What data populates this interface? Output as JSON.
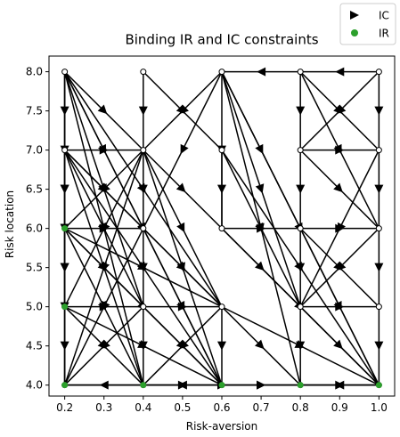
{
  "chart_data": {
    "type": "scatter",
    "title": "Binding IR and IC constraints",
    "xlabel": "Risk-aversion",
    "ylabel": "Risk location",
    "xlim": [
      0.16,
      1.04
    ],
    "ylim": [
      3.86,
      8.2
    ],
    "xticks": [
      "0.2",
      "0.3",
      "0.4",
      "0.5",
      "0.6",
      "0.7",
      "0.8",
      "0.9",
      "1.0"
    ],
    "yticks": [
      "4.0",
      "4.5",
      "5.0",
      "5.5",
      "6.0",
      "6.5",
      "7.0",
      "7.5",
      "8.0"
    ],
    "grid": false,
    "legend_position": "top-right",
    "legend": [
      {
        "label": "IC",
        "marker": "right-triangle",
        "color": "#000000"
      },
      {
        "label": "IR",
        "marker": "circle",
        "color": "#2ca02c"
      }
    ],
    "nodes": [
      [
        0.2,
        8.0
      ],
      [
        0.4,
        8.0
      ],
      [
        0.6,
        8.0
      ],
      [
        0.8,
        8.0
      ],
      [
        1.0,
        8.0
      ],
      [
        0.2,
        7.0
      ],
      [
        0.4,
        7.0
      ],
      [
        0.6,
        7.0
      ],
      [
        0.8,
        7.0
      ],
      [
        1.0,
        7.0
      ],
      [
        0.2,
        6.0
      ],
      [
        0.4,
        6.0
      ],
      [
        0.6,
        6.0
      ],
      [
        0.8,
        6.0
      ],
      [
        1.0,
        6.0
      ],
      [
        0.2,
        5.0
      ],
      [
        0.4,
        5.0
      ],
      [
        0.6,
        5.0
      ],
      [
        0.8,
        5.0
      ],
      [
        1.0,
        5.0
      ],
      [
        0.2,
        4.0
      ],
      [
        0.4,
        4.0
      ],
      [
        0.6,
        4.0
      ],
      [
        0.8,
        4.0
      ],
      [
        1.0,
        4.0
      ]
    ],
    "ir_points": [
      [
        0.2,
        6.0
      ],
      [
        0.2,
        5.0
      ],
      [
        0.2,
        4.0
      ],
      [
        0.4,
        4.0
      ],
      [
        0.6,
        4.0
      ],
      [
        0.8,
        4.0
      ],
      [
        1.0,
        4.0
      ]
    ],
    "ic_edges": [
      [
        [
          0.2,
          8.0
        ],
        [
          0.2,
          7.0
        ]
      ],
      [
        [
          0.2,
          8.0
        ],
        [
          0.4,
          7.0
        ]
      ],
      [
        [
          0.2,
          8.0
        ],
        [
          0.2,
          6.0
        ]
      ],
      [
        [
          0.2,
          8.0
        ],
        [
          0.4,
          6.0
        ]
      ],
      [
        [
          0.2,
          8.0
        ],
        [
          0.2,
          5.0
        ]
      ],
      [
        [
          0.2,
          8.0
        ],
        [
          0.4,
          5.0
        ]
      ],
      [
        [
          0.2,
          8.0
        ],
        [
          0.6,
          5.0
        ]
      ],
      [
        [
          0.2,
          8.0
        ],
        [
          0.2,
          4.0
        ]
      ],
      [
        [
          0.2,
          8.0
        ],
        [
          0.4,
          4.0
        ]
      ],
      [
        [
          0.2,
          8.0
        ],
        [
          0.6,
          4.0
        ]
      ],
      [
        [
          0.4,
          8.0
        ],
        [
          0.4,
          7.0
        ]
      ],
      [
        [
          0.4,
          8.0
        ],
        [
          0.6,
          7.0
        ]
      ],
      [
        [
          0.6,
          8.0
        ],
        [
          0.4,
          7.0
        ]
      ],
      [
        [
          0.6,
          8.0
        ],
        [
          0.6,
          6.0
        ]
      ],
      [
        [
          0.6,
          8.0
        ],
        [
          0.8,
          6.0
        ]
      ],
      [
        [
          0.6,
          8.0
        ],
        [
          0.8,
          5.0
        ]
      ],
      [
        [
          0.6,
          8.0
        ],
        [
          0.8,
          4.0
        ]
      ],
      [
        [
          0.6,
          8.0
        ],
        [
          1.0,
          4.0
        ]
      ],
      [
        [
          0.6,
          8.0
        ],
        [
          0.4,
          6.0
        ]
      ],
      [
        [
          1.0,
          8.0
        ],
        [
          0.8,
          8.0
        ]
      ],
      [
        [
          0.8,
          8.0
        ],
        [
          0.6,
          8.0
        ]
      ],
      [
        [
          0.8,
          8.0
        ],
        [
          1.0,
          7.0
        ]
      ],
      [
        [
          0.8,
          8.0
        ],
        [
          0.8,
          7.0
        ]
      ],
      [
        [
          0.8,
          8.0
        ],
        [
          1.0,
          6.0
        ]
      ],
      [
        [
          1.0,
          8.0
        ],
        [
          1.0,
          7.0
        ]
      ],
      [
        [
          1.0,
          8.0
        ],
        [
          0.8,
          7.0
        ]
      ],
      [
        [
          0.2,
          7.0
        ],
        [
          0.2,
          6.0
        ]
      ],
      [
        [
          0.2,
          7.0
        ],
        [
          0.4,
          6.0
        ]
      ],
      [
        [
          0.2,
          7.0
        ],
        [
          0.2,
          5.0
        ]
      ],
      [
        [
          0.2,
          7.0
        ],
        [
          0.4,
          5.0
        ]
      ],
      [
        [
          0.2,
          7.0
        ],
        [
          0.6,
          5.0
        ]
      ],
      [
        [
          0.2,
          7.0
        ],
        [
          0.2,
          4.0
        ]
      ],
      [
        [
          0.2,
          7.0
        ],
        [
          0.4,
          4.0
        ]
      ],
      [
        [
          0.2,
          7.0
        ],
        [
          0.6,
          4.0
        ]
      ],
      [
        [
          0.2,
          7.0
        ],
        [
          0.4,
          7.0
        ]
      ],
      [
        [
          0.4,
          7.0
        ],
        [
          0.4,
          6.0
        ]
      ],
      [
        [
          0.4,
          7.0
        ],
        [
          0.2,
          6.0
        ]
      ],
      [
        [
          0.4,
          7.0
        ],
        [
          0.2,
          5.0
        ]
      ],
      [
        [
          0.4,
          7.0
        ],
        [
          0.6,
          6.0
        ]
      ],
      [
        [
          0.4,
          7.0
        ],
        [
          0.6,
          5.0
        ]
      ],
      [
        [
          0.4,
          7.0
        ],
        [
          0.2,
          4.0
        ]
      ],
      [
        [
          0.4,
          7.0
        ],
        [
          0.6,
          4.0
        ]
      ],
      [
        [
          0.6,
          7.0
        ],
        [
          0.6,
          6.0
        ]
      ],
      [
        [
          0.6,
          7.0
        ],
        [
          0.8,
          5.0
        ]
      ],
      [
        [
          0.6,
          7.0
        ],
        [
          1.0,
          4.0
        ]
      ],
      [
        [
          0.8,
          7.0
        ],
        [
          1.0,
          7.0
        ]
      ],
      [
        [
          0.8,
          7.0
        ],
        [
          0.8,
          6.0
        ]
      ],
      [
        [
          0.8,
          7.0
        ],
        [
          1.0,
          6.0
        ]
      ],
      [
        [
          1.0,
          7.0
        ],
        [
          1.0,
          6.0
        ]
      ],
      [
        [
          1.0,
          7.0
        ],
        [
          0.8,
          5.0
        ]
      ],
      [
        [
          0.2,
          6.0
        ],
        [
          0.2,
          5.0
        ]
      ],
      [
        [
          0.2,
          6.0
        ],
        [
          0.4,
          5.0
        ]
      ],
      [
        [
          0.2,
          6.0
        ],
        [
          0.6,
          5.0
        ]
      ],
      [
        [
          0.2,
          6.0
        ],
        [
          0.2,
          4.0
        ]
      ],
      [
        [
          0.2,
          6.0
        ],
        [
          0.4,
          4.0
        ]
      ],
      [
        [
          0.2,
          6.0
        ],
        [
          0.6,
          4.0
        ]
      ],
      [
        [
          0.2,
          6.0
        ],
        [
          0.4,
          6.0
        ]
      ],
      [
        [
          0.4,
          6.0
        ],
        [
          0.4,
          5.0
        ]
      ],
      [
        [
          0.4,
          6.0
        ],
        [
          0.2,
          4.0
        ]
      ],
      [
        [
          0.4,
          6.0
        ],
        [
          0.6,
          4.0
        ]
      ],
      [
        [
          0.4,
          6.0
        ],
        [
          0.6,
          5.0
        ]
      ],
      [
        [
          0.6,
          6.0
        ],
        [
          0.8,
          6.0
        ]
      ],
      [
        [
          0.6,
          6.0
        ],
        [
          0.8,
          5.0
        ]
      ],
      [
        [
          0.6,
          6.0
        ],
        [
          1.0,
          4.0
        ]
      ],
      [
        [
          0.8,
          6.0
        ],
        [
          1.0,
          6.0
        ]
      ],
      [
        [
          0.8,
          6.0
        ],
        [
          0.8,
          5.0
        ]
      ],
      [
        [
          0.8,
          6.0
        ],
        [
          1.0,
          5.0
        ]
      ],
      [
        [
          0.8,
          6.0
        ],
        [
          1.0,
          4.0
        ]
      ],
      [
        [
          1.0,
          6.0
        ],
        [
          1.0,
          5.0
        ]
      ],
      [
        [
          1.0,
          6.0
        ],
        [
          0.8,
          5.0
        ]
      ],
      [
        [
          0.2,
          5.0
        ],
        [
          0.2,
          4.0
        ]
      ],
      [
        [
          0.2,
          5.0
        ],
        [
          0.4,
          4.0
        ]
      ],
      [
        [
          0.2,
          5.0
        ],
        [
          0.6,
          4.0
        ]
      ],
      [
        [
          0.2,
          5.0
        ],
        [
          0.4,
          5.0
        ]
      ],
      [
        [
          0.4,
          5.0
        ],
        [
          0.4,
          4.0
        ]
      ],
      [
        [
          0.4,
          5.0
        ],
        [
          0.2,
          4.0
        ]
      ],
      [
        [
          0.4,
          5.0
        ],
        [
          0.6,
          4.0
        ]
      ],
      [
        [
          0.4,
          5.0
        ],
        [
          0.6,
          5.0
        ]
      ],
      [
        [
          0.6,
          5.0
        ],
        [
          0.6,
          4.0
        ]
      ],
      [
        [
          0.6,
          5.0
        ],
        [
          0.4,
          4.0
        ]
      ],
      [
        [
          0.6,
          5.0
        ],
        [
          0.8,
          4.0
        ]
      ],
      [
        [
          0.6,
          5.0
        ],
        [
          1.0,
          4.0
        ]
      ],
      [
        [
          0.8,
          5.0
        ],
        [
          0.8,
          4.0
        ]
      ],
      [
        [
          0.8,
          5.0
        ],
        [
          1.0,
          4.0
        ]
      ],
      [
        [
          0.8,
          5.0
        ],
        [
          1.0,
          5.0
        ]
      ],
      [
        [
          1.0,
          5.0
        ],
        [
          1.0,
          4.0
        ]
      ],
      [
        [
          0.4,
          4.0
        ],
        [
          0.2,
          4.0
        ]
      ],
      [
        [
          0.6,
          4.0
        ],
        [
          0.4,
          4.0
        ]
      ],
      [
        [
          0.6,
          4.0
        ],
        [
          0.8,
          4.0
        ]
      ],
      [
        [
          0.8,
          4.0
        ],
        [
          1.0,
          4.0
        ]
      ],
      [
        [
          1.0,
          4.0
        ],
        [
          0.8,
          4.0
        ]
      ],
      [
        [
          0.2,
          4.0
        ],
        [
          0.8,
          4.0
        ]
      ],
      [
        [
          0.4,
          4.0
        ],
        [
          1.0,
          4.0
        ]
      ],
      [
        [
          0.2,
          4.0
        ],
        [
          1.0,
          4.0
        ]
      ]
    ]
  }
}
